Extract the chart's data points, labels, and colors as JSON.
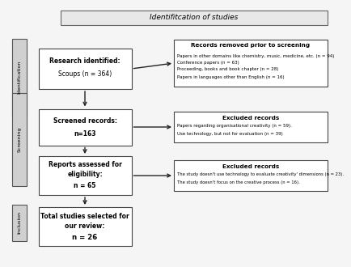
{
  "title": "Identifitcation of studies",
  "bg_color": "#f5f5f5",
  "title_box_color": "#e8e8e8",
  "sidebar_color": "#d0d0d0",
  "box_face": "#ffffff",
  "box_edge": "#444444",
  "arrow_color": "#222222",
  "sidebar_labels": {
    "identification": "Identification",
    "screening": "Screening",
    "inclusion": "Inclusion"
  },
  "left_boxes": {
    "b1": {
      "lines": [
        "Research identified:",
        "Scoups (n = 364)"
      ],
      "bold": [
        true,
        false
      ]
    },
    "b2": {
      "lines": [
        "Screened records:",
        "n=163"
      ],
      "bold": [
        true,
        true
      ]
    },
    "b3": {
      "lines": [
        "Reports assessed for",
        "eligibility:",
        "n = 65"
      ],
      "bold": [
        true,
        true,
        true
      ]
    },
    "b4": {
      "lines": [
        "Total studies selected for",
        "our review:",
        "n = 26"
      ],
      "bold": [
        true,
        true,
        true
      ]
    }
  },
  "right_boxes": {
    "rb1": {
      "title": "Records removed prior to screening",
      "lines": [
        "Papers in other domains like chemistry, music, medicine, etc. (n = 94)",
        "Conference papers (n = 63)",
        "Proceeding, books and book chapter (n = 28)",
        "Papers in languages other than English (n = 16)"
      ]
    },
    "rb2": {
      "title": "Excluded records",
      "lines": [
        "Papers regarding organisational creativity (n = 59).",
        "Use technology, but not for evaluation (n = 39)"
      ]
    },
    "rb3": {
      "title": "Excluded records",
      "lines": [
        "The study doesn't use technology to evaluate creativity' dimensions (n = 23).",
        "The study doesn't focus on the creative process (n = 16)."
      ]
    }
  }
}
